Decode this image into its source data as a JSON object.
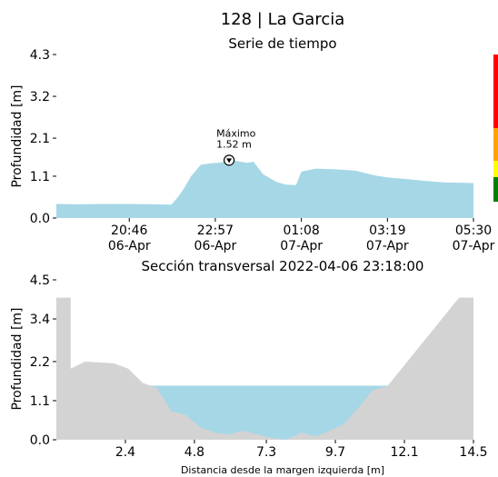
{
  "page": {
    "title": "128 | La Garcia"
  },
  "chart_data": [
    {
      "type": "area",
      "title": "Serie de tiempo",
      "xlabel": "",
      "ylabel": "Profundidad [m]",
      "ylim": [
        0.0,
        4.3
      ],
      "yticks": [
        0.0,
        1.1,
        2.1,
        3.2,
        4.3
      ],
      "yticklabels": [
        "0.0",
        "1.1",
        "2.1",
        "3.2",
        "4.3"
      ],
      "xlim": [
        "06-Apr 18:55",
        "07-Apr 05:30"
      ],
      "xticks": [
        {
          "time": "20:46",
          "date": "06-Apr"
        },
        {
          "time": "22:57",
          "date": "06-Apr"
        },
        {
          "time": "01:08",
          "date": "07-Apr"
        },
        {
          "time": "03:19",
          "date": "07-Apr"
        },
        {
          "time": "05:30",
          "date": "07-Apr"
        }
      ],
      "fill_color": "#a6d7e6",
      "grid": false,
      "series": [
        {
          "x": [
            "06-Apr 18:55",
            "06-Apr 19:30",
            "06-Apr 20:00",
            "06-Apr 20:46",
            "06-Apr 21:30",
            "06-Apr 21:50",
            "06-Apr 22:00",
            "06-Apr 22:10",
            "06-Apr 22:20",
            "06-Apr 22:35",
            "06-Apr 22:50",
            "06-Apr 23:05",
            "06-Apr 23:18",
            "06-Apr 23:30",
            "06-Apr 23:45",
            "06-Apr 23:55",
            "07-Apr 00:10",
            "07-Apr 00:30",
            "07-Apr 00:45",
            "07-Apr 01:00",
            "07-Apr 01:08",
            "07-Apr 01:30",
            "07-Apr 02:00",
            "07-Apr 02:30",
            "07-Apr 03:00",
            "07-Apr 03:19",
            "07-Apr 03:45",
            "07-Apr 04:15",
            "07-Apr 04:45",
            "07-Apr 05:30"
          ],
          "y": [
            0.37,
            0.36,
            0.37,
            0.37,
            0.36,
            0.35,
            0.55,
            0.8,
            1.1,
            1.4,
            1.44,
            1.46,
            1.52,
            1.5,
            1.45,
            1.48,
            1.15,
            0.95,
            0.88,
            0.87,
            1.22,
            1.3,
            1.28,
            1.25,
            1.12,
            1.07,
            1.03,
            0.98,
            0.94,
            0.92
          ]
        }
      ],
      "annotation": {
        "label": "Máximo",
        "value_text": "1.52 m",
        "x": "06-Apr 23:18",
        "y": 1.52
      },
      "status_bar": {
        "colors": [
          "#ff0000",
          "#ffa500",
          "#ffff00",
          "#008000"
        ],
        "fractions": [
          0.45,
          0.2,
          0.1,
          0.15
        ]
      }
    },
    {
      "type": "area",
      "title": "Sección transversal 2022-04-06 23:18:00",
      "xlabel": "Distancia desde la margen izquierda [m]",
      "ylabel": "Profundidad [m]",
      "xlim": [
        0.0,
        14.5
      ],
      "ylim": [
        0.0,
        4.5
      ],
      "xticks": [
        2.4,
        4.8,
        7.3,
        9.7,
        12.1,
        14.5
      ],
      "xticklabels": [
        "2.4",
        "4.8",
        "7.3",
        "9.7",
        "12.1",
        "14.5"
      ],
      "yticks": [
        0.0,
        1.1,
        2.2,
        3.4,
        4.5
      ],
      "yticklabels": [
        "0.0",
        "1.1",
        "2.2",
        "3.4",
        "4.5"
      ],
      "grid": false,
      "water_level": 1.52,
      "water_color": "#a6d7e6",
      "bed_color": "#d3d3d3",
      "bed_profile": {
        "x": [
          0.0,
          0.5,
          0.5,
          1.0,
          2.0,
          2.5,
          3.0,
          3.5,
          4.0,
          4.5,
          5.0,
          5.5,
          6.0,
          6.5,
          7.0,
          7.5,
          8.0,
          8.5,
          9.0,
          9.5,
          10.0,
          10.5,
          11.0,
          11.5,
          12.0,
          12.5,
          13.0,
          13.5,
          14.0,
          14.5
        ],
        "y": [
          4.0,
          4.0,
          2.0,
          2.2,
          2.15,
          2.0,
          1.6,
          1.45,
          0.8,
          0.7,
          0.35,
          0.2,
          0.15,
          0.25,
          0.15,
          0.05,
          0.0,
          0.2,
          0.1,
          0.25,
          0.45,
          0.9,
          1.4,
          1.5,
          2.0,
          2.5,
          3.0,
          3.5,
          4.0,
          4.0
        ]
      }
    }
  ]
}
